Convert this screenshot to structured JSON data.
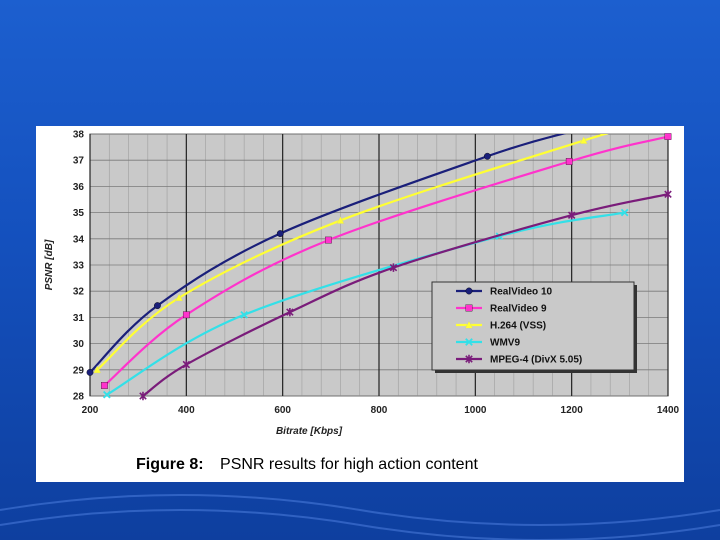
{
  "slide": {
    "caption_label": "Figure 8:",
    "caption_text": "PSNR results for high action content"
  },
  "chart_data": {
    "type": "line",
    "title": "",
    "xlabel": "Bitrate [Kbps]",
    "ylabel": "PSNR [dB]",
    "xlim": [
      200,
      1400
    ],
    "ylim": [
      28,
      38
    ],
    "xticks": [
      200,
      400,
      600,
      800,
      1000,
      1200,
      1400
    ],
    "yticks": [
      28,
      29,
      30,
      31,
      32,
      33,
      34,
      35,
      36,
      37,
      38
    ],
    "grid": true,
    "legend_position": "bottom-right",
    "series": [
      {
        "name": "RealVideo 10",
        "color": "#1a1f7a",
        "marker": "circle",
        "x": [
          200,
          340,
          595,
          1025,
          1200
        ],
        "y": [
          28.9,
          31.45,
          34.2,
          37.15,
          38.1
        ]
      },
      {
        "name": "RealVideo 9",
        "color": "#ff33cc",
        "marker": "square",
        "x": [
          230,
          400,
          695,
          1195,
          1400
        ],
        "y": [
          28.4,
          31.1,
          33.95,
          36.95,
          37.9
        ]
      },
      {
        "name": "H.264 (VSS)",
        "color": "#ffff33",
        "marker": "triangle",
        "x": [
          215,
          385,
          720,
          1225,
          1300
        ],
        "y": [
          29.0,
          31.75,
          34.7,
          37.75,
          38.1
        ]
      },
      {
        "name": "WMV9",
        "color": "#33e0e8",
        "marker": "x",
        "x": [
          235,
          520,
          1050,
          1310
        ],
        "y": [
          28.05,
          31.1,
          34.1,
          35.0
        ]
      },
      {
        "name": "MPEG-4 (DivX 5.05)",
        "color": "#7a1c7a",
        "marker": "star",
        "x": [
          310,
          400,
          615,
          830,
          1200,
          1400
        ],
        "y": [
          28.0,
          29.2,
          31.2,
          32.9,
          34.9,
          35.7
        ]
      }
    ]
  }
}
